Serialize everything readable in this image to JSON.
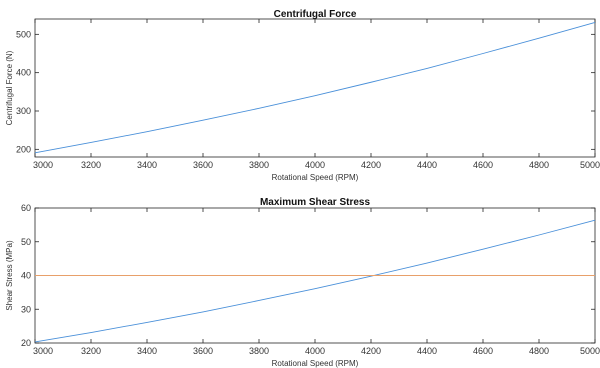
{
  "chart_data": [
    {
      "type": "line",
      "title": "Centrifugal Force",
      "xlabel": "Rotational Speed (RPM)",
      "ylabel": "Centrifugal Force (N)",
      "xlim": [
        3000,
        5000
      ],
      "ylim": [
        180,
        540
      ],
      "xticks": [
        3000,
        3200,
        3400,
        3600,
        3800,
        4000,
        4200,
        4400,
        4600,
        4800,
        5000
      ],
      "yticks": [
        200,
        300,
        400,
        500
      ],
      "grid": false,
      "series": [
        {
          "color": "#4a90d9",
          "x": [
            3000,
            3200,
            3400,
            3600,
            3800,
            4000,
            4200,
            4400,
            4600,
            4800,
            5000
          ],
          "y": [
            191,
            218,
            246,
            276,
            307,
            340,
            375,
            411,
            450,
            490,
            531
          ]
        }
      ]
    },
    {
      "type": "line",
      "title": "Maximum Shear Stress",
      "xlabel": "Rotational Speed (RPM)",
      "ylabel": "Shear Stress (MPa)",
      "xlim": [
        3000,
        5000
      ],
      "ylim": [
        20,
        60
      ],
      "xticks": [
        3000,
        3200,
        3400,
        3600,
        3800,
        4000,
        4200,
        4400,
        4600,
        4800,
        5000
      ],
      "yticks": [
        20,
        30,
        40,
        50,
        60
      ],
      "grid": false,
      "series": [
        {
          "color": "#4a90d9",
          "x": [
            3000,
            3200,
            3400,
            3600,
            3800,
            4000,
            4200,
            4400,
            4600,
            4800,
            5000
          ],
          "y": [
            20.3,
            23.1,
            26.1,
            29.2,
            32.6,
            36.1,
            39.8,
            43.7,
            47.8,
            52.0,
            56.4
          ]
        },
        {
          "color": "#e8a06a",
          "x": [
            3000,
            5000
          ],
          "y": [
            40,
            40
          ]
        }
      ]
    }
  ]
}
